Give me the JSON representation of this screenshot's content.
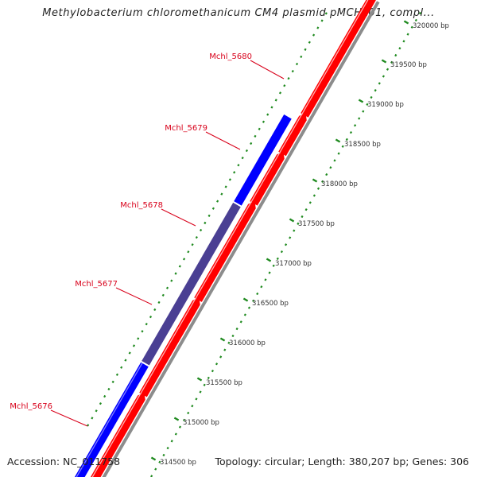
{
  "title": "Methylobacterium chloromethanicum CM4 plasmid pMCHL01, compl...",
  "footer": {
    "accession": "Accession: NC_011758",
    "summary": "Topology: circular; Length: 380,207 bp; Genes: 306"
  },
  "colors": {
    "forward_gene": "#ff0000",
    "reverse_gene": "#0000ff",
    "reverse_gene_shaded": "#4a3f93",
    "track_shadow": "#8c8c8c",
    "tick": "#1f8a1f",
    "label": "#d8001a"
  },
  "gene_labels": [
    "Mchl_5680",
    "Mchl_5679",
    "Mchl_5678",
    "Mchl_5677",
    "Mchl_5676"
  ],
  "scale_labels": [
    "320000 bp",
    "319500 bp",
    "319000 bp",
    "318500 bp",
    "318000 bp",
    "317500 bp",
    "317000 bp",
    "316500 bp",
    "316000 bp",
    "315500 bp",
    "315000 bp",
    "314500 bp"
  ]
}
